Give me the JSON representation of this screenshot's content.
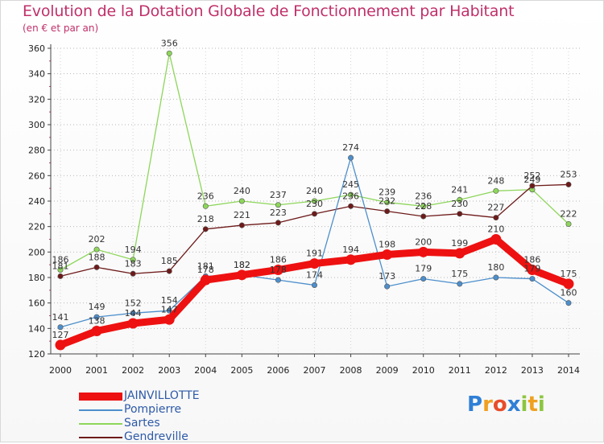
{
  "chart_data": {
    "type": "line",
    "title": "Evolution de la Dotation Globale de Fonctionnement par Habitant",
    "subtitle": "(en € et par an)",
    "x": [
      2000,
      2001,
      2002,
      2003,
      2004,
      2005,
      2006,
      2007,
      2008,
      2009,
      2010,
      2011,
      2012,
      2013,
      2014
    ],
    "ylim": [
      120,
      360
    ],
    "yticks": [
      120,
      140,
      160,
      180,
      200,
      220,
      240,
      260,
      280,
      300,
      320,
      340,
      360
    ],
    "grid": "horizontal dotted",
    "series": [
      {
        "name": "JAINVILLOTTE",
        "color": "#ee1111",
        "values": [
          127,
          138,
          144,
          147,
          178,
          182,
          186,
          191,
          194,
          198,
          200,
          199,
          210,
          186,
          175
        ]
      },
      {
        "name": "Pompierre",
        "color": "#4d8fcc",
        "values": [
          141,
          149,
          152,
          154,
          181,
          182,
          178,
          174,
          274,
          173,
          179,
          175,
          180,
          179,
          160
        ]
      },
      {
        "name": "Sartes",
        "color": "#8ed65b",
        "values": [
          186,
          202,
          194,
          356,
          236,
          240,
          237,
          240,
          245,
          239,
          236,
          241,
          248,
          249,
          222
        ]
      },
      {
        "name": "Gendreville",
        "color": "#6e1a1a",
        "values": [
          181,
          188,
          183,
          185,
          218,
          221,
          223,
          230,
          236,
          232,
          228,
          230,
          227,
          252,
          253
        ]
      }
    ]
  },
  "brand": {
    "letters": [
      {
        "ch": "P",
        "color": "#2f7fd6"
      },
      {
        "ch": "r",
        "color": "#f0a020"
      },
      {
        "ch": "o",
        "color": "#e84c2a"
      },
      {
        "ch": "x",
        "color": "#2f7fd6"
      },
      {
        "ch": "i",
        "color": "#8cc63f"
      },
      {
        "ch": "t",
        "color": "#f0a020"
      },
      {
        "ch": "i",
        "color": "#8cc63f"
      }
    ]
  }
}
